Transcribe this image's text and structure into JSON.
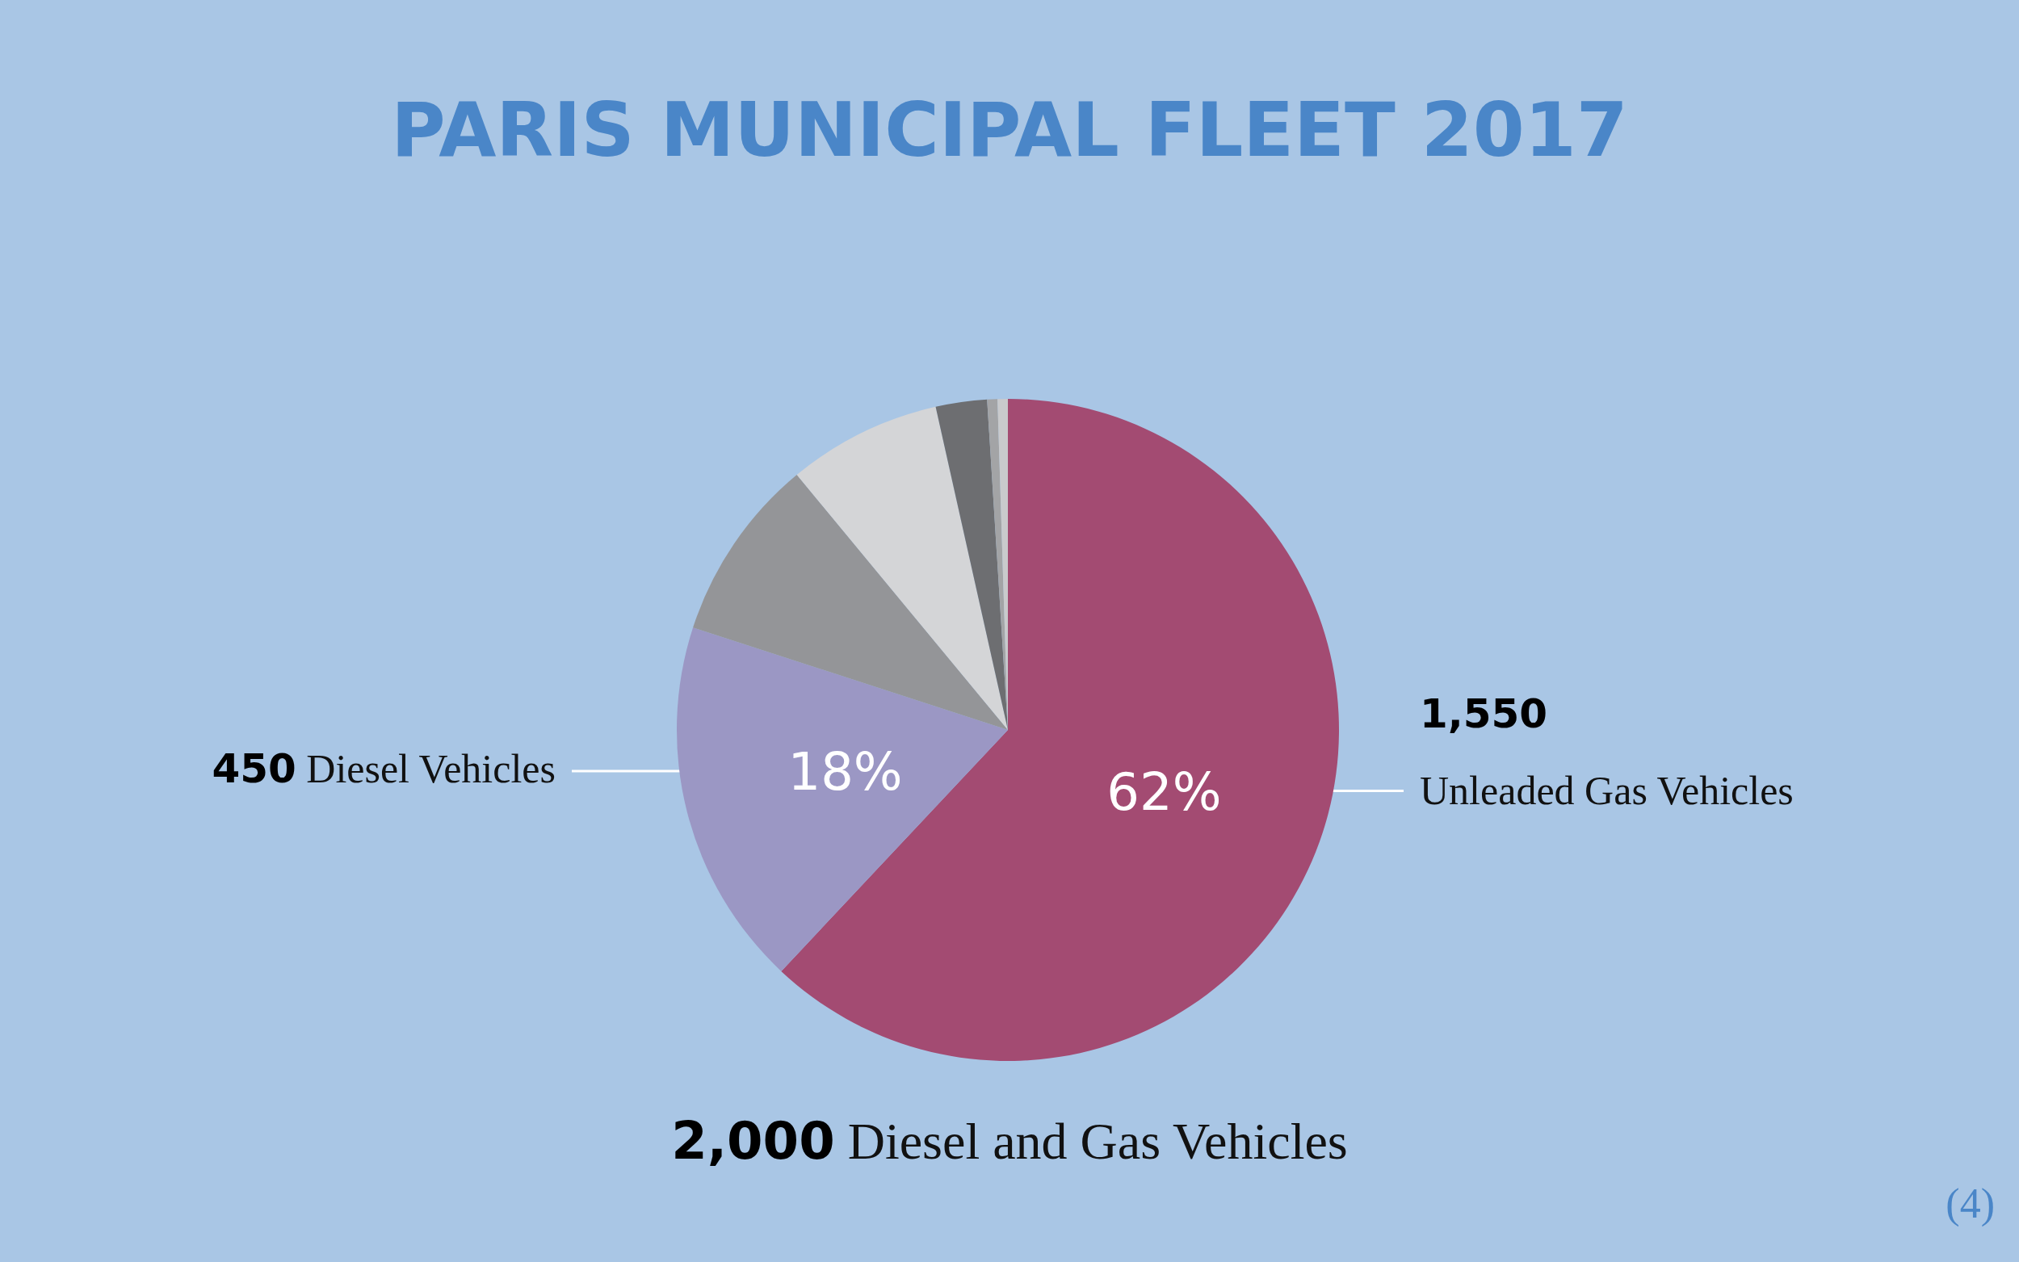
{
  "chart_data": {
    "type": "pie",
    "title": "PARIS MUNICIPAL FLEET 2017",
    "categories": [
      "1,550 Unleaded Gas Vehicles",
      "450 Diesel Vehicles",
      null,
      null,
      null,
      null,
      null
    ],
    "values": [
      62,
      18,
      9,
      7.5,
      2.5,
      0.5,
      0.5
    ],
    "value_labels": [
      "62%",
      "18%",
      null,
      null,
      null,
      null,
      null
    ],
    "colors": [
      "#a34b72",
      "#9b97c4",
      "#949598",
      "#d4d5d7",
      "#6d6e71",
      "#a3a4a6",
      "#c9cacc"
    ],
    "annotations": [
      "2,000 Diesel and Gas Vehicles",
      "(4)"
    ],
    "legend": false
  }
}
